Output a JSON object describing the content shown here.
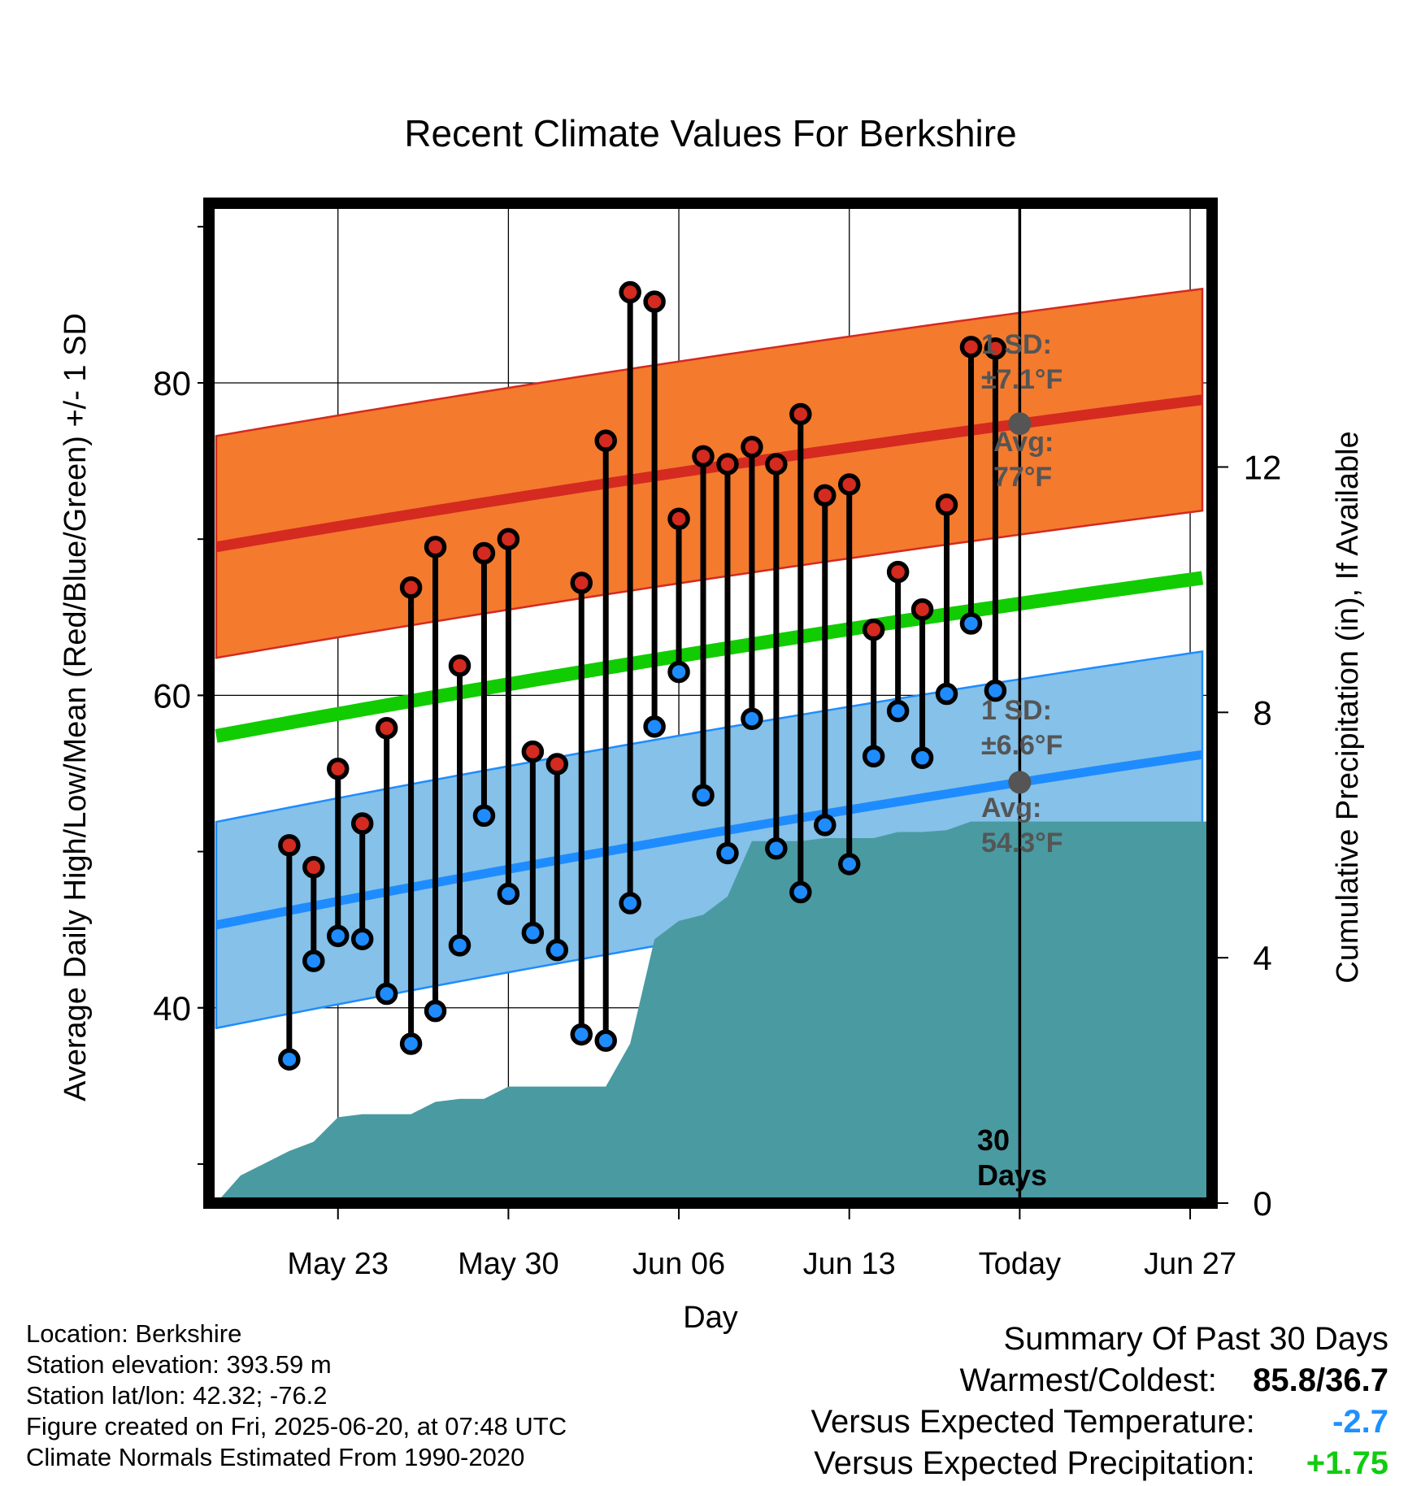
{
  "chart_data": {
    "type": "line",
    "title": "Recent Climate Values For Berkshire",
    "xlabel": "Day",
    "ylabel": "Average Daily High/Low/Mean (Red/Blue/Green) +/- 1 SD",
    "y2label": "Cumulative Precipitation (in), If Available",
    "ylim": [
      27.5,
      91.5
    ],
    "y_ticks": [
      "40",
      "60",
      "80"
    ],
    "y2lim": [
      0,
      16.3
    ],
    "y2_ticks": [
      "0",
      "4",
      "8",
      "12"
    ],
    "x_tick_labels": [
      "May 23",
      "May 30",
      "Jun 06",
      "Jun 13",
      "Today",
      "Jun 27"
    ],
    "x_days_range": [
      -33.3,
      7.9
    ],
    "x_tick_days": [
      -28,
      -21,
      -14,
      -7,
      0,
      7
    ],
    "grid": true,
    "daily": {
      "day": [
        -30,
        -29,
        -28,
        -27,
        -26,
        -25,
        -24,
        -23,
        -22,
        -21,
        -20,
        -19,
        -18,
        -17,
        -16,
        -15,
        -14,
        -13,
        -12,
        -11,
        -10,
        -9,
        -8,
        -7,
        -6,
        -5,
        -4,
        -3,
        -2,
        -1
      ],
      "high": [
        50.4,
        49.0,
        55.3,
        51.8,
        57.9,
        66.9,
        69.5,
        61.9,
        69.1,
        70.0,
        56.4,
        55.6,
        67.2,
        76.3,
        85.8,
        85.2,
        71.3,
        75.3,
        74.8,
        75.9,
        74.8,
        78.0,
        72.8,
        73.5,
        64.2,
        67.9,
        65.5,
        72.2,
        82.3,
        82.2
      ],
      "low": [
        36.7,
        43.0,
        44.6,
        44.4,
        40.9,
        37.7,
        39.8,
        44.0,
        52.3,
        47.3,
        44.8,
        43.7,
        38.3,
        37.9,
        46.7,
        58.0,
        61.5,
        53.6,
        49.9,
        58.5,
        50.2,
        47.4,
        51.7,
        49.2,
        56.1,
        59.0,
        56.0,
        60.1,
        64.6,
        60.3
      ]
    },
    "normals": {
      "day": [
        -33,
        7.9
      ],
      "high_avg": [
        69.5,
        79.0
      ],
      "high_sd": 7.1,
      "low_avg": [
        45.3,
        56.3
      ],
      "low_sd": 6.6,
      "mean_avg": [
        57.4,
        67.6
      ]
    },
    "precip_cum": {
      "day": [
        -33,
        -32,
        -31,
        -30,
        -29,
        -28,
        -27,
        -26,
        -25,
        -24,
        -23,
        -22,
        -21,
        -20,
        -19,
        -18,
        -17,
        -16,
        -15,
        -14,
        -13,
        -12,
        -11,
        -10,
        -9,
        -8,
        -7,
        -6,
        -5,
        -4,
        -3,
        -2,
        -1,
        0,
        7.9
      ],
      "value": [
        0,
        0.45,
        0.65,
        0.85,
        1.0,
        1.4,
        1.45,
        1.45,
        1.45,
        1.65,
        1.7,
        1.7,
        1.9,
        1.9,
        1.9,
        1.9,
        1.9,
        2.6,
        4.3,
        4.6,
        4.7,
        5.0,
        5.9,
        5.9,
        5.9,
        5.95,
        5.95,
        5.95,
        6.05,
        6.05,
        6.08,
        6.22,
        6.22,
        6.22,
        6.22
      ]
    },
    "annotations": {
      "high_sd_label": "1 SD:",
      "high_sd_value": "±7.1°F",
      "high_avg_label": "Avg:",
      "high_avg_value": "77°F",
      "low_sd_label": "1 SD:",
      "low_sd_value": "±6.6°F",
      "low_avg_label": "Avg:",
      "low_avg_value": "54.3°F",
      "days_label_1": "30",
      "days_label_2": "Days"
    },
    "colors": {
      "high_band": "#f47a2e",
      "high_line": "#d42a20",
      "low_band": "#85c1e9",
      "low_line": "#1e8cff",
      "mean_line": "#11cc00",
      "precip": "#4a9aa2",
      "high_marker": "#d42a20",
      "low_marker": "#1e8cff",
      "annotation": "#555555"
    }
  },
  "info": {
    "location": "Location: Berkshire",
    "elevation": "Station elevation: 393.59 m",
    "latlon": "Station lat/lon: 42.32; -76.2",
    "created": "Figure created on Fri, 2025-06-20, at 07:48 UTC",
    "normals": "Climate Normals Estimated From 1990-2020"
  },
  "summary": {
    "title": "Summary Of Past 30 Days",
    "warm_cold_label": "Warmest/Coldest:",
    "warm_cold_value": "85.8/36.7",
    "temp_label": "Versus Expected Temperature:",
    "temp_value": "-2.7",
    "precip_label": "Versus Expected Precipitation:",
    "precip_value": "+1.75"
  }
}
